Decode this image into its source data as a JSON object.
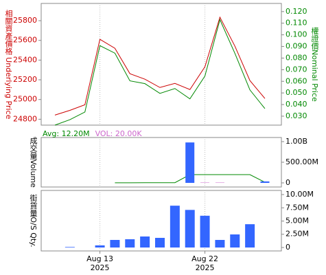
{
  "chart_data": [
    {
      "type": "line",
      "y_label": "相關資產價格 Underlying Price",
      "y2_label": "權證價Nominal Price",
      "ylim": [
        24740,
        25975
      ],
      "yticks": [
        24800,
        25000,
        25200,
        25400,
        25600,
        25800
      ],
      "y2lim": [
        0.0223,
        0.127
      ],
      "y2ticks": [
        {
          "value": 0.03,
          "label": "0.030"
        },
        {
          "value": 0.04,
          "label": "0.040"
        },
        {
          "value": 0.05,
          "label": "0.050"
        },
        {
          "value": 0.06,
          "label": "0.060"
        },
        {
          "value": 0.07,
          "label": "0.070"
        },
        {
          "value": 0.08,
          "label": "0.080"
        },
        {
          "value": 0.09,
          "label": "0.090"
        },
        {
          "value": 0.1,
          "label": "0.100"
        },
        {
          "value": 0.11,
          "label": "0.110"
        },
        {
          "value": 0.12,
          "label": "0.120"
        }
      ],
      "grid": true,
      "series": [
        {
          "name": "Underlying Price",
          "color": "#cc0000",
          "values": [
            24842,
            24890,
            24947,
            25611,
            25520,
            25262,
            25206,
            25122,
            25164,
            25101,
            25332,
            25835,
            25541,
            25192,
            25010
          ]
        },
        {
          "name": "Nominal Price",
          "color": "#008800",
          "axis": "y2",
          "values": [
            0.0223,
            0.027,
            0.0336,
            0.0907,
            0.0842,
            0.0604,
            0.058,
            0.0496,
            0.0538,
            0.0449,
            0.0645,
            0.113,
            0.084,
            0.0526,
            0.0365
          ]
        }
      ]
    },
    {
      "type": "bar",
      "y_label": "成交量Volume",
      "ylim": [
        -100000000,
        1100000000
      ],
      "yticks": [
        0,
        {
          "value": 500000000,
          "label": "500.00M"
        },
        {
          "value": 1000000000,
          "label": "1.00B"
        }
      ],
      "grid": true,
      "series": [
        {
          "name": "Avg: 12.20M",
          "type": "line",
          "color": "#008800",
          "values": [
            null,
            null,
            null,
            null,
            2000000,
            3000000,
            5000000,
            5000000,
            5000000,
            200000000,
            200000000,
            200000000,
            200000000,
            200000000,
            15000000
          ]
        },
        {
          "name": "VOL: 20.00K",
          "color": "#cc66cc",
          "values": [
            null,
            null,
            null,
            null,
            null,
            null,
            null,
            null,
            null,
            980000000,
            8000000,
            8000000,
            null,
            null,
            35000000
          ],
          "colors": [
            null,
            null,
            null,
            null,
            null,
            null,
            null,
            null,
            null,
            "#3366ff",
            "#cc66cc",
            "#cc66cc",
            null,
            null,
            "#3366ff"
          ]
        }
      ]
    },
    {
      "type": "bar",
      "y_label": "街貨量O/S Qty.",
      "ylim": [
        -650000,
        10780000
      ],
      "yticks": [
        0,
        {
          "value": 2500000,
          "label": "2.50M"
        },
        {
          "value": 5000000,
          "label": "5.00M"
        },
        {
          "value": 7500000,
          "label": "7.50M"
        },
        {
          "value": 10000000,
          "label": "10.00M"
        }
      ],
      "grid": true,
      "color": "#3366ff",
      "values": [
        null,
        100000,
        null,
        400000,
        1430000,
        1560000,
        2080000,
        1820000,
        7900000,
        7100000,
        6000000,
        1430000,
        2470000,
        4400000,
        null
      ],
      "categories": [
        null,
        null,
        null,
        "Aug 13",
        null,
        null,
        null,
        null,
        null,
        null,
        "Aug 22",
        null,
        null,
        null,
        null
      ],
      "year_labels": [
        null,
        null,
        null,
        "2025",
        null,
        null,
        null,
        null,
        null,
        null,
        "2025",
        null,
        null,
        null,
        null
      ]
    }
  ]
}
